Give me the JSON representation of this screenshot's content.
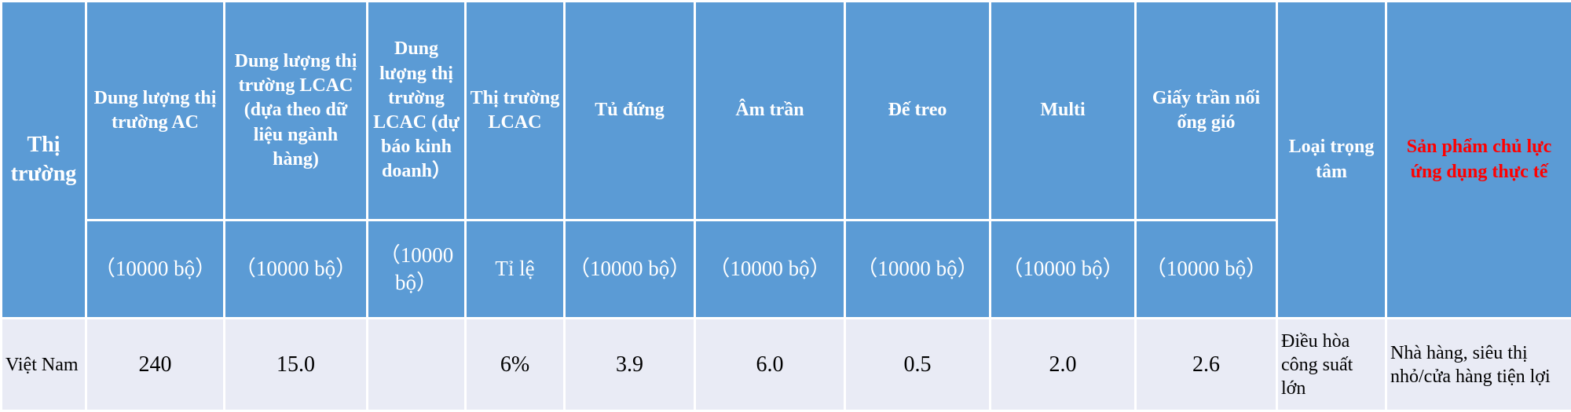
{
  "header": {
    "market": "Thị trường",
    "columns": [
      {
        "title": "Dung lượng thị trường AC",
        "unit": "（10000 bộ）"
      },
      {
        "title": "Dung lượng thị trường LCAC (dựa theo dữ liệu ngành hàng)",
        "unit": "（10000 bộ）"
      },
      {
        "title": "Dung lượng thị trường LCAC (dự báo kinh doanh）",
        "unit": "（10000 bộ）"
      },
      {
        "title": "Thị trường LCAC",
        "unit": "Tỉ lệ"
      },
      {
        "title": "Tủ đứng",
        "unit": "（10000 bộ）"
      },
      {
        "title": "Âm trần",
        "unit": "（10000 bộ）"
      },
      {
        "title": "Đế treo",
        "unit": "（10000 bộ）"
      },
      {
        "title": "Multi",
        "unit": "（10000 bộ）"
      },
      {
        "title": "Giấy trần nối ống gió",
        "unit": "（10000 bộ）"
      }
    ],
    "focus": "Loại trọng tâm",
    "products": "Sản phẩm chủ lực ứng dụng thực tế"
  },
  "rows": [
    {
      "market": "Việt Nam",
      "values": [
        "240",
        "15.0",
        null,
        "6%",
        "3.9",
        "6.0",
        "0.5",
        "2.0",
        "2.6"
      ],
      "focus": "Điều hòa công suất lớn",
      "products": "Nhà hàng, siêu thị nhỏ/cửa hàng tiện lợi"
    }
  ]
}
